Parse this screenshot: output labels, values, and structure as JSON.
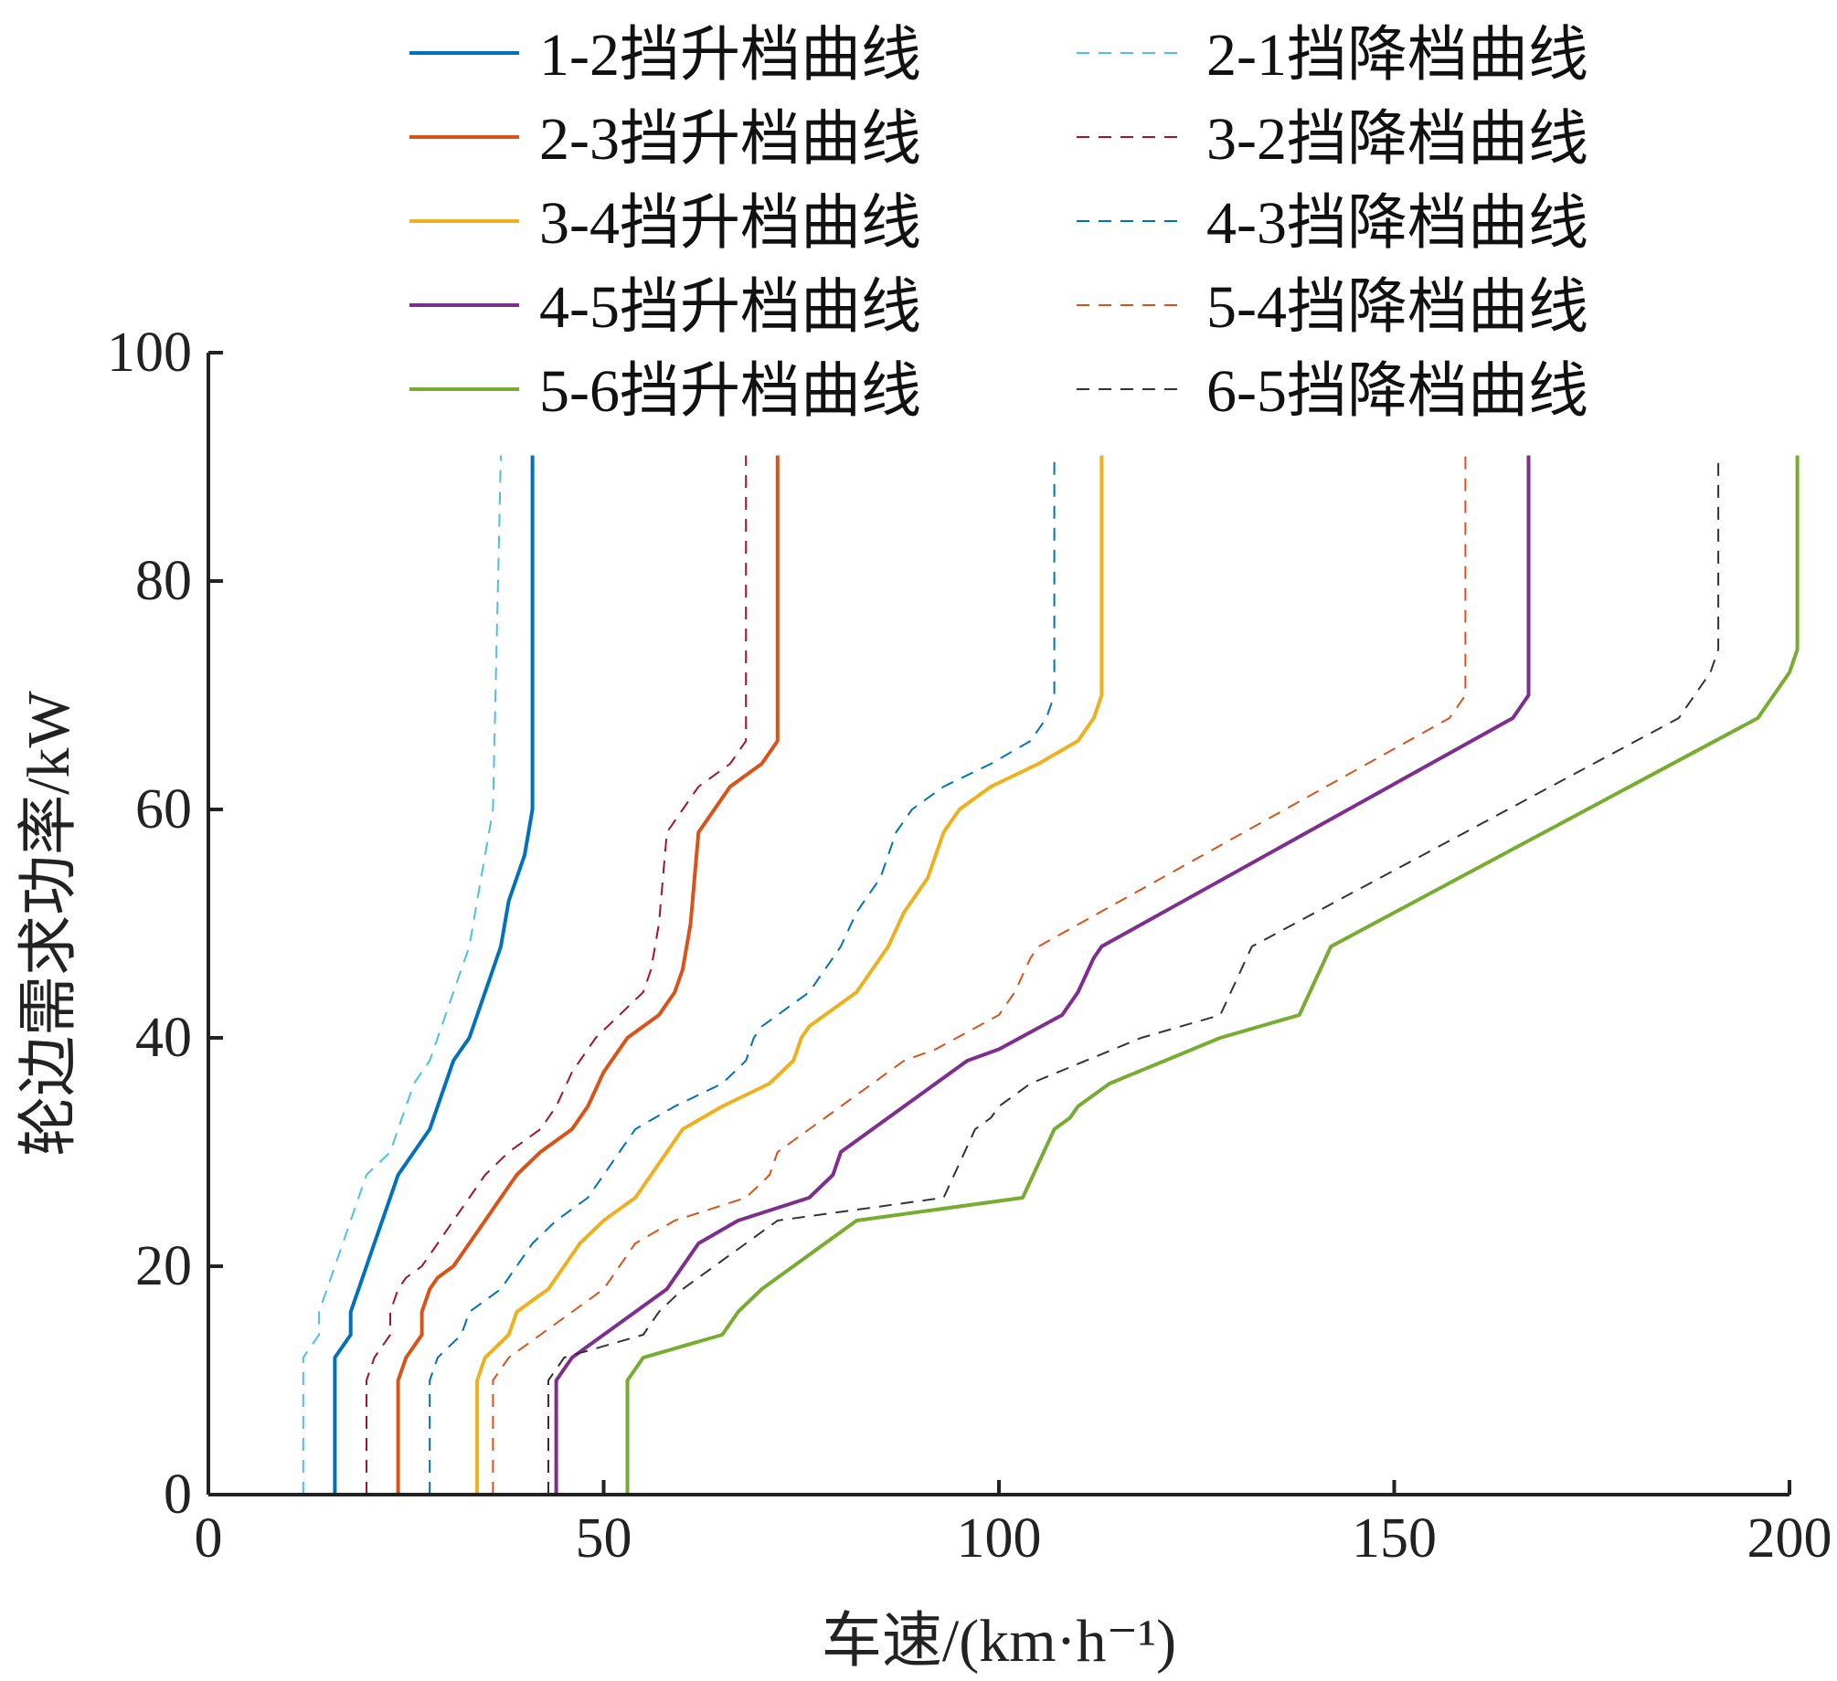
{
  "chart_data": {
    "type": "line",
    "xlabel": "车速/(km·h⁻¹)",
    "ylabel": "轮边需求功率/kW",
    "xlim": [
      0,
      200
    ],
    "ylim": [
      0,
      100
    ],
    "xticks": [
      "0",
      "50",
      "100",
      "150",
      "200"
    ],
    "yticks": [
      "0",
      "20",
      "40",
      "60",
      "80",
      "100"
    ],
    "grid": false,
    "legend": "top",
    "series": [
      {
        "name": "1-2挡升档曲线",
        "style": "solid",
        "color": "#0072BD",
        "x": [
          16,
          16,
          18,
          18,
          19,
          20,
          21,
          22,
          24,
          26,
          28,
          30,
          31,
          33,
          35,
          37,
          38,
          40,
          41,
          41
        ],
        "y": [
          0,
          12,
          14,
          16,
          18,
          20,
          22,
          24,
          28,
          30,
          32,
          36,
          38,
          40,
          44,
          48,
          52,
          56,
          60,
          91
        ]
      },
      {
        "name": "2-3挡升档曲线",
        "style": "solid",
        "color": "#D95319",
        "x": [
          24,
          24,
          25,
          27,
          27,
          28,
          29,
          31,
          33,
          35,
          37,
          39,
          42,
          46,
          48,
          50,
          53,
          57,
          59,
          60,
          61,
          62,
          64,
          66,
          70,
          72,
          72
        ],
        "y": [
          0,
          10,
          12,
          14,
          16,
          18,
          19,
          20,
          22,
          24,
          26,
          28,
          30,
          32,
          34,
          37,
          40,
          42,
          44,
          46,
          50,
          58,
          60,
          62,
          64,
          66,
          91
        ]
      },
      {
        "name": "3-4挡升档曲线",
        "style": "solid",
        "color": "#EDB120",
        "x": [
          34,
          34,
          35,
          38,
          39,
          41,
          43,
          47,
          50,
          54,
          56,
          58,
          60,
          65,
          71,
          74,
          75,
          76,
          78,
          80,
          82,
          84,
          86,
          88,
          89,
          91,
          92,
          93,
          95,
          97,
          99,
          105,
          110,
          112,
          113,
          113
        ],
        "y": [
          0,
          10,
          12,
          14,
          16,
          17,
          18,
          22,
          24,
          26,
          28,
          30,
          32,
          34,
          36,
          38,
          40,
          41,
          42,
          43,
          44,
          46,
          48,
          51,
          52,
          54,
          56,
          58,
          60,
          61,
          62,
          64,
          66,
          68,
          70,
          91
        ]
      },
      {
        "name": "4-5挡升档曲线",
        "style": "solid",
        "color": "#7E2F8E",
        "x": [
          44,
          44,
          46,
          48,
          50,
          52,
          54,
          56,
          58,
          62,
          67,
          76,
          79,
          80,
          82,
          84,
          88,
          96,
          100,
          108,
          110,
          112,
          113,
          165,
          167,
          167
        ],
        "y": [
          0,
          10,
          12,
          13,
          14,
          15,
          16,
          17,
          18,
          22,
          24,
          26,
          28,
          30,
          31,
          32,
          34,
          38,
          39,
          42,
          44,
          47,
          48,
          68,
          70,
          91
        ]
      },
      {
        "name": "5-6挡升档曲线",
        "style": "solid",
        "color": "#77AC30",
        "x": [
          53,
          53,
          55,
          65,
          67,
          70,
          78,
          82,
          103,
          107,
          109,
          110,
          114,
          128,
          138,
          142,
          196,
          200,
          201,
          201
        ],
        "y": [
          0,
          10,
          12,
          14,
          16,
          18,
          22,
          24,
          26,
          32,
          33,
          34,
          36,
          40,
          42,
          48,
          68,
          72,
          74,
          91
        ]
      },
      {
        "name": "2-1挡降档曲线",
        "style": "dashed",
        "color": "#4DBEEE",
        "x": [
          12,
          12,
          14,
          14,
          15,
          16,
          17,
          18,
          20,
          23,
          24,
          26,
          28,
          29,
          31,
          33,
          34,
          35,
          36,
          37,
          37
        ],
        "y": [
          0,
          12,
          14,
          16,
          18,
          20,
          22,
          24,
          28,
          30,
          32,
          36,
          38,
          40,
          44,
          48,
          52,
          56,
          60,
          91,
          91
        ]
      },
      {
        "name": "3-2挡降档曲线",
        "style": "dashed",
        "color": "#A2142F",
        "x": [
          20,
          20,
          21,
          23,
          23,
          24,
          25,
          27,
          29,
          31,
          33,
          35,
          38,
          42,
          44,
          46,
          49,
          52,
          55,
          56,
          57,
          58,
          60,
          62,
          66,
          68,
          68
        ],
        "y": [
          0,
          10,
          12,
          14,
          16,
          18,
          19,
          20,
          22,
          24,
          26,
          28,
          30,
          32,
          34,
          37,
          40,
          42,
          44,
          46,
          50,
          58,
          60,
          62,
          64,
          66,
          91
        ]
      },
      {
        "name": "4-3挡降档曲线",
        "style": "dashed",
        "color": "#0072BD",
        "x": [
          28,
          28,
          29,
          32,
          33,
          35,
          37,
          41,
          44,
          48,
          50,
          52,
          54,
          59,
          65,
          68,
          69,
          70,
          72,
          74,
          76,
          78,
          80,
          82,
          83,
          85,
          86,
          87,
          89,
          91,
          93,
          99,
          104,
          106,
          107,
          107
        ],
        "y": [
          0,
          10,
          12,
          14,
          16,
          17,
          18,
          22,
          24,
          26,
          28,
          30,
          32,
          34,
          36,
          38,
          40,
          41,
          42,
          43,
          44,
          46,
          48,
          51,
          52,
          54,
          56,
          58,
          60,
          61,
          62,
          64,
          66,
          68,
          70,
          91
        ]
      },
      {
        "name": "5-4挡降档曲线",
        "style": "dashed",
        "color": "#D95319",
        "x": [
          36,
          36,
          38,
          40,
          42,
          44,
          46,
          48,
          50,
          54,
          59,
          68,
          71,
          72,
          74,
          76,
          80,
          88,
          92,
          100,
          102,
          104,
          105,
          157,
          159,
          159
        ],
        "y": [
          0,
          10,
          12,
          13,
          14,
          15,
          16,
          17,
          18,
          22,
          24,
          26,
          28,
          30,
          31,
          32,
          34,
          38,
          39,
          42,
          44,
          47,
          48,
          68,
          70,
          91
        ]
      },
      {
        "name": "6-5挡降档曲线",
        "style": "dashed",
        "color": "#333333",
        "x": [
          43,
          43,
          45,
          55,
          57,
          60,
          68,
          72,
          93,
          97,
          99,
          100,
          104,
          118,
          128,
          132,
          186,
          190,
          191,
          191
        ],
        "y": [
          0,
          10,
          12,
          14,
          16,
          18,
          22,
          24,
          26,
          32,
          33,
          34,
          36,
          40,
          42,
          48,
          68,
          72,
          74,
          91
        ]
      }
    ]
  }
}
